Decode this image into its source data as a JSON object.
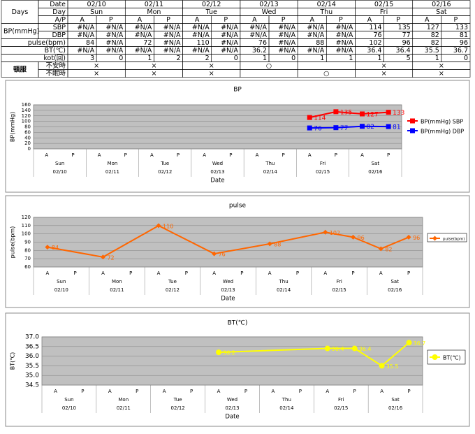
{
  "table": {
    "days_label": "Days",
    "date_label": "Date",
    "dates": [
      "02/10",
      "02/11",
      "02/12",
      "02/13",
      "02/14",
      "02/15",
      "02/16"
    ],
    "day_label": "Day",
    "days": [
      "Sun",
      "Mon",
      "Tue",
      "Wed",
      "Thu",
      "Fri",
      "Sat"
    ],
    "ap_label": "A/P",
    "ap": [
      "A",
      "P",
      "A",
      "P",
      "A",
      "P",
      "A",
      "P",
      "A",
      "P",
      "A",
      "P",
      "A",
      "P"
    ],
    "bp_label": "BP(mmHg)",
    "bp_rows": [
      {
        "label": "SBP",
        "cells": [
          "#N/A",
          "#N/A",
          "#N/A",
          "#N/A",
          "#N/A",
          "#N/A",
          "#N/A",
          "#N/A",
          "#N/A",
          "#N/A",
          114,
          135,
          127,
          133
        ]
      },
      {
        "label": "DBP",
        "cells": [
          "#N/A",
          "#N/A",
          "#N/A",
          "#N/A",
          "#N/A",
          "#N/A",
          "#N/A",
          "#N/A",
          "#N/A",
          "#N/A",
          76,
          77,
          82,
          81
        ]
      }
    ],
    "rows": [
      {
        "label": "pulse(bpm)",
        "cells": [
          84,
          "#N/A",
          72,
          "#N/A",
          110,
          "#N/A",
          76,
          "#N/A",
          88,
          "#N/A",
          102,
          96,
          82,
          96
        ]
      },
      {
        "label": "BT(℃)",
        "cells": [
          "#N/A",
          "#N/A",
          "#N/A",
          "#N/A",
          "#N/A",
          "#N/A",
          36.2,
          "#N/A",
          "#N/A",
          "#N/A",
          36.4,
          36.4,
          35.5,
          36.7
        ]
      },
      {
        "label": "kot(回)",
        "cells": [
          3,
          0,
          1,
          2,
          2,
          0,
          1,
          0,
          1,
          1,
          1,
          5,
          1,
          0
        ]
      }
    ],
    "prn_label": "頓服",
    "prn_rows": [
      {
        "label": "不安時",
        "cells": [
          "×",
          "×",
          "×",
          "○",
          null,
          "×",
          "×"
        ]
      },
      {
        "label": "不眠時",
        "cells": [
          "×",
          "×",
          "×",
          null,
          "○",
          "×",
          "×"
        ]
      }
    ]
  },
  "chart_data": [
    {
      "type": "line",
      "title": "BP",
      "ylabel": "BP(mmHg)",
      "xlabel": "Date",
      "categories": [
        "A",
        "P",
        "A",
        "P",
        "A",
        "P",
        "A",
        "P",
        "A",
        "P",
        "A",
        "P",
        "A",
        "P"
      ],
      "group_days": [
        "Sun",
        "Mon",
        "Tue",
        "Wed",
        "Thu",
        "Fri",
        "Sat"
      ],
      "group_dates": [
        "02/10",
        "02/11",
        "02/12",
        "02/13",
        "02/14",
        "02/15",
        "02/16"
      ],
      "ylim": [
        0,
        160
      ],
      "yticks": [
        0,
        20,
        40,
        60,
        80,
        100,
        120,
        140,
        160
      ],
      "grid": true,
      "connect_gaps": true,
      "marker": "square",
      "legend": "right",
      "data_labels": true,
      "series": [
        {
          "name": "BP(mmHg) SBP",
          "color": "#ff0000",
          "values": [
            null,
            null,
            null,
            null,
            null,
            null,
            null,
            null,
            null,
            null,
            114,
            135,
            127,
            133
          ]
        },
        {
          "name": "BP(mmHg) DBP",
          "color": "#0000ff",
          "values": [
            null,
            null,
            null,
            null,
            null,
            null,
            null,
            null,
            null,
            null,
            76,
            77,
            82,
            81
          ]
        }
      ]
    },
    {
      "type": "line",
      "title": "pulse",
      "ylabel": "pulse(bpm)",
      "xlabel": "Date",
      "categories": [
        "A",
        "P",
        "A",
        "P",
        "A",
        "P",
        "A",
        "P",
        "A",
        "P",
        "A",
        "P",
        "A",
        "P"
      ],
      "group_days": [
        "Sun",
        "Mon",
        "Tue",
        "Wed",
        "Thu",
        "Fri",
        "Sat"
      ],
      "group_dates": [
        "02/10",
        "02/11",
        "02/12",
        "02/13",
        "02/14",
        "02/15",
        "02/16"
      ],
      "ylim": [
        60,
        120
      ],
      "yticks": [
        60,
        70,
        80,
        90,
        100,
        110,
        120
      ],
      "grid": true,
      "connect_gaps": true,
      "marker": "diamond",
      "legend": "right",
      "data_labels": true,
      "series": [
        {
          "name": "pulse(bpm)",
          "color": "#ff6600",
          "values": [
            84,
            null,
            72,
            null,
            110,
            null,
            76,
            null,
            88,
            null,
            102,
            96,
            82,
            96
          ]
        }
      ]
    },
    {
      "type": "line",
      "title": "BT(℃)",
      "ylabel": "BT(℃)",
      "xlabel": "Date",
      "categories": [
        "A",
        "P",
        "A",
        "P",
        "A",
        "P",
        "A",
        "P",
        "A",
        "P",
        "A",
        "P",
        "A",
        "P"
      ],
      "group_days": [
        "Sun",
        "Mon",
        "Tue",
        "Wed",
        "Thu",
        "Fri",
        "Sat"
      ],
      "group_dates": [
        "02/10",
        "02/11",
        "02/12",
        "02/13",
        "02/14",
        "02/15",
        "02/16"
      ],
      "ylim": [
        34.5,
        37
      ],
      "yticks": [
        34.5,
        {
          "value": 35,
          "label": "35.0"
        },
        35.5,
        {
          "value": 36,
          "label": "36.0"
        },
        36.5,
        {
          "value": 37,
          "label": "37.0"
        }
      ],
      "grid": true,
      "connect_gaps": true,
      "marker": "circle",
      "legend": "right",
      "data_labels": true,
      "series": [
        {
          "name": "BT(℃)",
          "color": "#ffff00",
          "values": [
            null,
            null,
            null,
            null,
            null,
            null,
            36.2,
            null,
            null,
            null,
            36.4,
            36.4,
            35.5,
            36.7
          ]
        }
      ]
    }
  ]
}
